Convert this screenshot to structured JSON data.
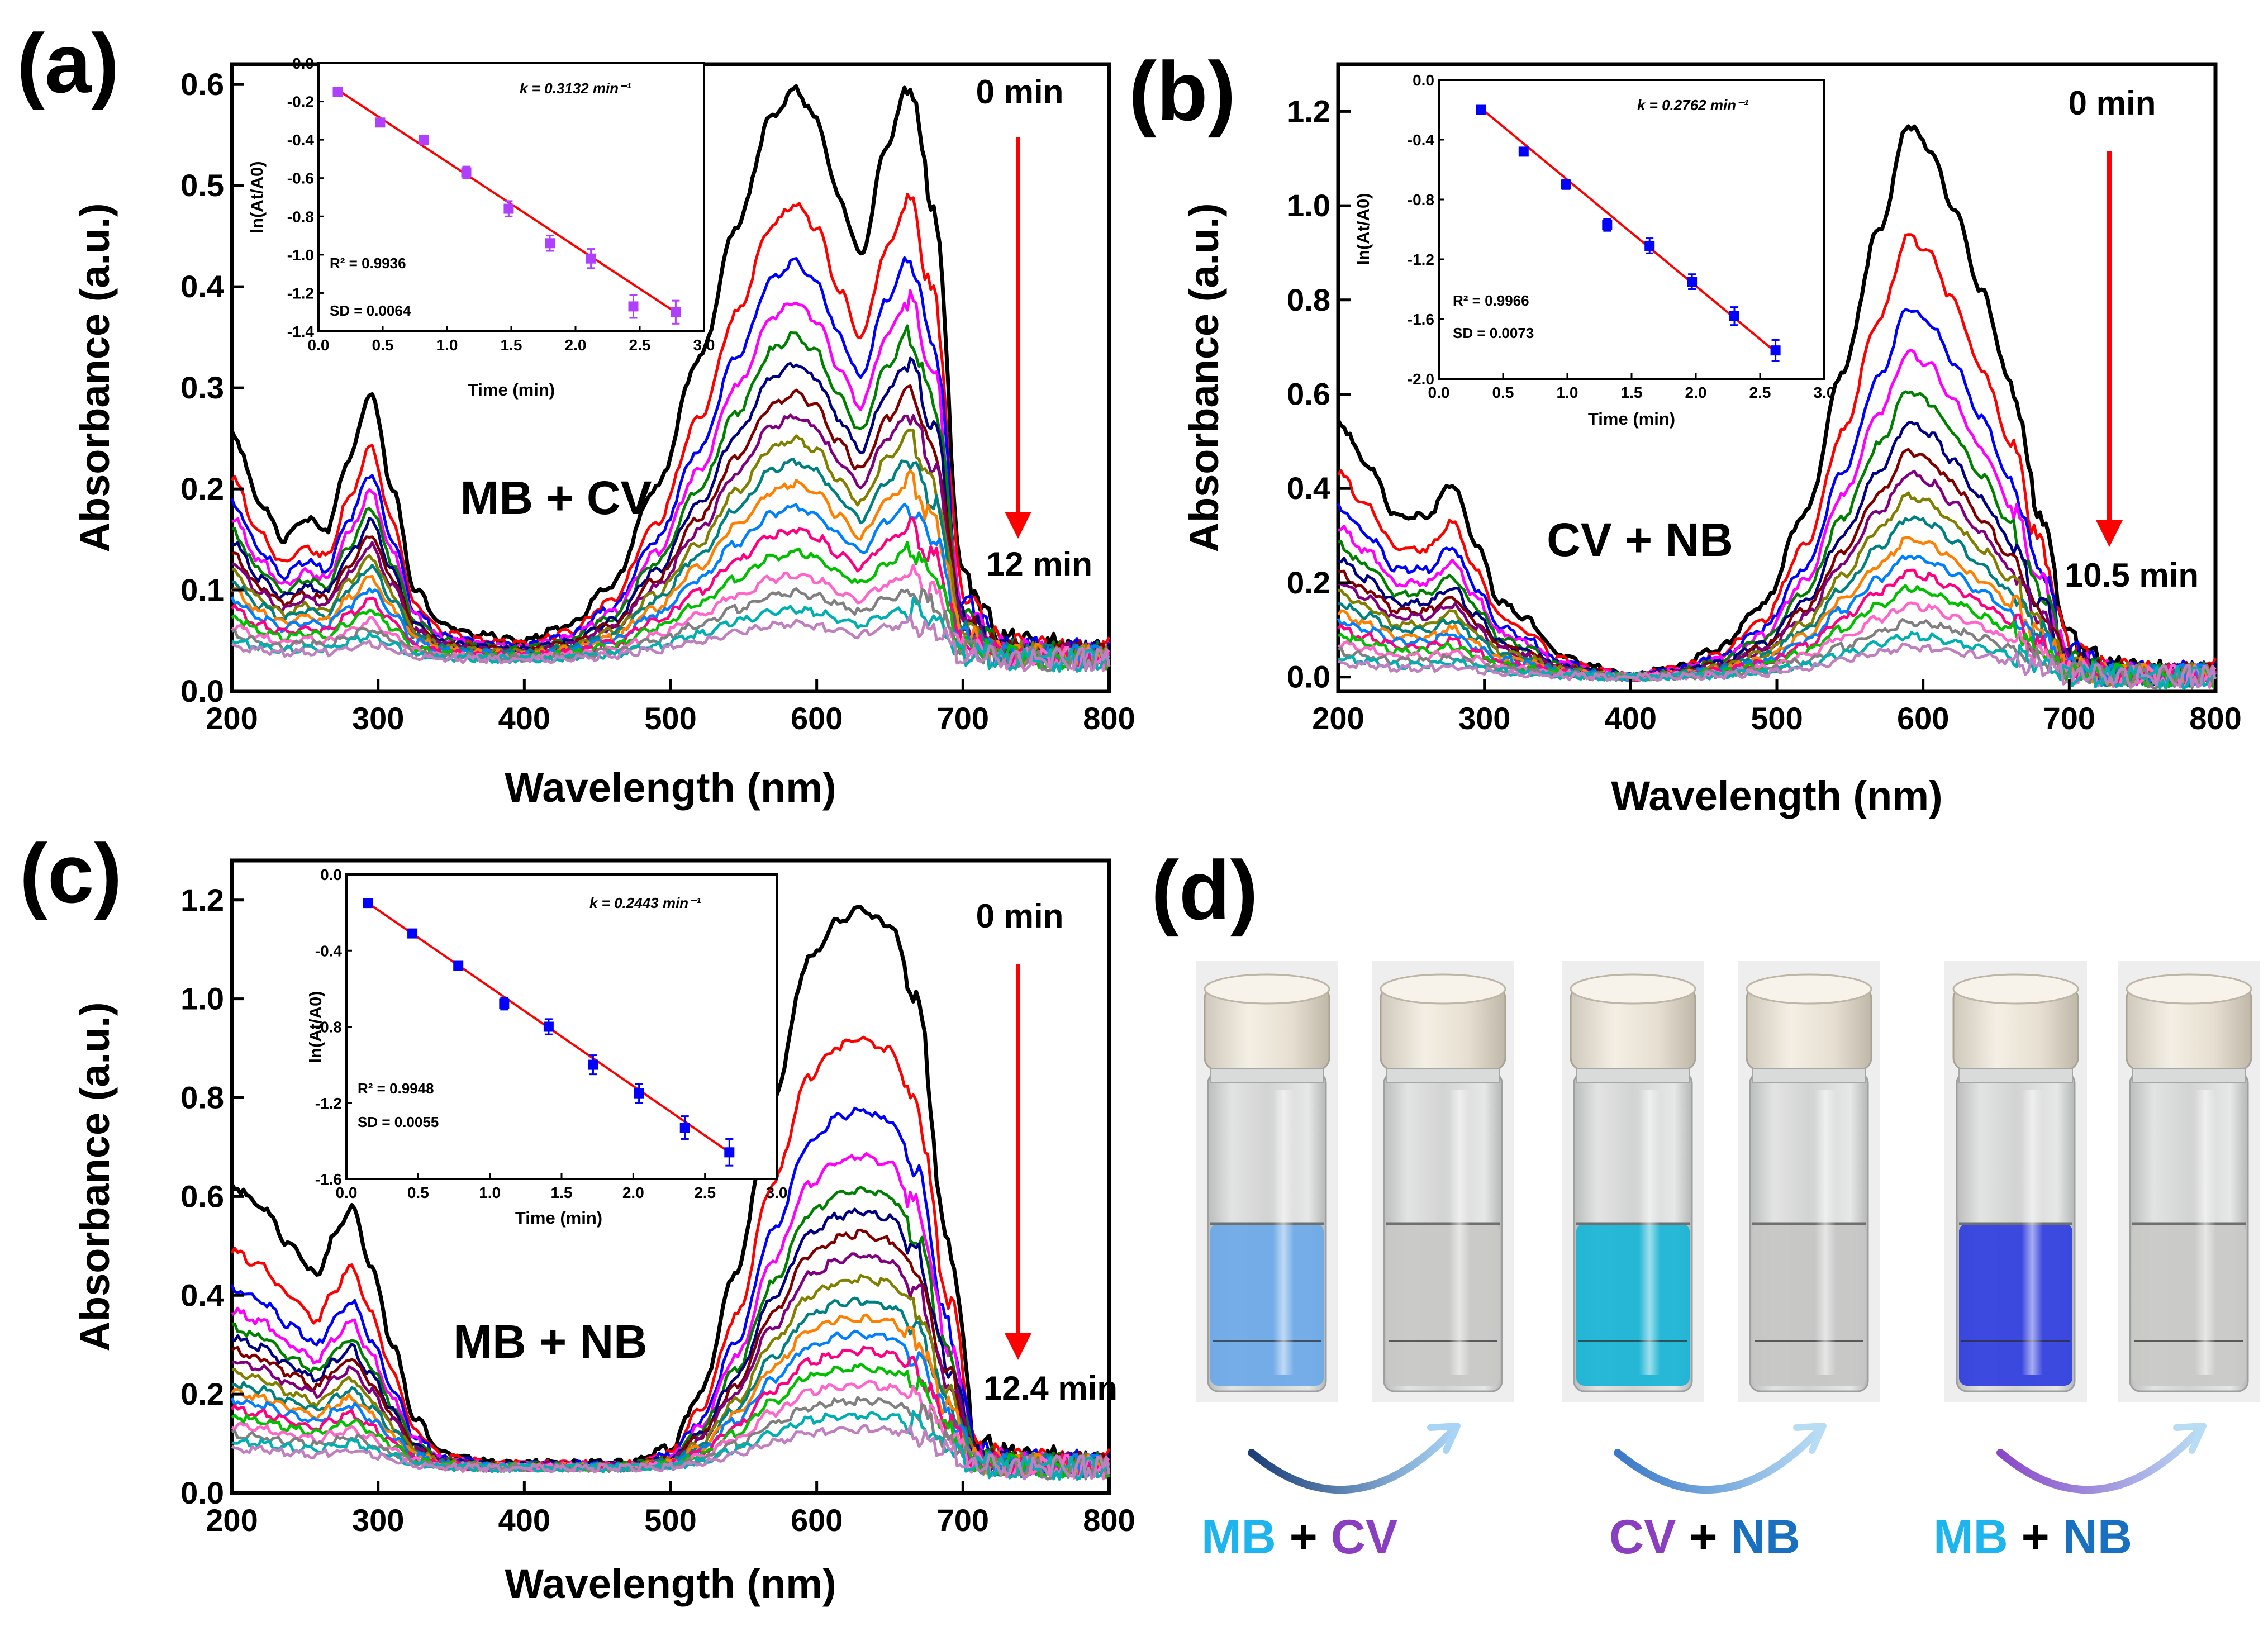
{
  "figure": {
    "spectrum_colors": [
      "#000000",
      "#ff0000",
      "#0000ff",
      "#ff00ff",
      "#008000",
      "#000080",
      "#800000",
      "#800080",
      "#808000",
      "#008080",
      "#ff8000",
      "#0080ff",
      "#ff0080",
      "#00c000",
      "#ff66cc",
      "#808080",
      "#00b0b0",
      "#c080c0",
      "#6080ff",
      "#a0a000",
      "#40a040",
      "#a06060",
      "#60a0a0"
    ],
    "inset_point_color": "#0000ff",
    "inset_line_color": "#ff0000",
    "arrow_color": "#ff0000"
  },
  "chart_data": [
    {
      "panel": "(a)",
      "type": "line",
      "title": "MB + CV",
      "xlabel": "Wavelength (nm)",
      "ylabel": "Absorbance (a.u.)",
      "xlim": [
        200,
        800
      ],
      "ylim": [
        0.0,
        0.62
      ],
      "xticks": [
        200,
        300,
        400,
        500,
        600,
        700,
        800
      ],
      "yticks": [
        0.0,
        0.1,
        0.2,
        0.3,
        0.4,
        0.5,
        0.6
      ],
      "ytick_labels": [
        "0.0",
        "0.1",
        "0.2",
        "0.3",
        "0.4",
        "0.5",
        "0.6"
      ],
      "time_start": "0 min",
      "time_end": "12 min",
      "spectrum_model": {
        "wavelength_grid": [
          200,
          220,
          235,
          250,
          265,
          280,
          295,
          310,
          325,
          345,
          370,
          400,
          430,
          460,
          490,
          520,
          545,
          570,
          585,
          600,
          615,
          630,
          648,
          663,
          680,
          700,
          730,
          760,
          800
        ],
        "initial_absorbance": [
          0.255,
          0.185,
          0.15,
          0.17,
          0.16,
          0.23,
          0.295,
          0.2,
          0.1,
          0.065,
          0.055,
          0.05,
          0.065,
          0.105,
          0.2,
          0.33,
          0.46,
          0.57,
          0.595,
          0.565,
          0.49,
          0.43,
          0.54,
          0.6,
          0.48,
          0.11,
          0.05,
          0.045,
          0.045
        ],
        "scale_factors": [
          1.0,
          0.8,
          0.7,
          0.63,
          0.57,
          0.52,
          0.47,
          0.43,
          0.39,
          0.35,
          0.31,
          0.27,
          0.23,
          0.19,
          0.15,
          0.12,
          0.09,
          0.065
        ],
        "baseline": 0.03
      },
      "inset": {
        "type": "scatter",
        "xlabel": "Time (min)",
        "ylabel": "ln(At/A0)",
        "xlim": [
          0.0,
          3.0
        ],
        "ylim": [
          -1.4,
          0.0
        ],
        "xticks": [
          0.0,
          0.5,
          1.0,
          1.5,
          2.0,
          2.5,
          3.0
        ],
        "xtick_labels": [
          "0.0",
          "0.5",
          "1.0",
          "1.5",
          "2.0",
          "2.5",
          "3.0"
        ],
        "yticks": [
          0.0,
          -0.2,
          -0.4,
          -0.6,
          -0.8,
          -1.0,
          -1.2,
          -1.4
        ],
        "ytick_labels": [
          "0.0",
          "-0.2",
          "-0.4",
          "-0.6",
          "-0.8",
          "-1.0",
          "-1.2",
          "-1.4"
        ],
        "points_x": [
          0.15,
          0.48,
          0.82,
          1.15,
          1.48,
          1.8,
          2.12,
          2.45,
          2.78
        ],
        "points_y": [
          -0.15,
          -0.31,
          -0.4,
          -0.57,
          -0.76,
          -0.94,
          -1.02,
          -1.27,
          -1.3
        ],
        "errors": [
          0.01,
          0.02,
          0.02,
          0.03,
          0.04,
          0.04,
          0.05,
          0.06,
          0.06
        ],
        "point_color": "#b040ff",
        "fit_line": {
          "x": [
            0.15,
            2.8
          ],
          "y": [
            -0.14,
            -1.31
          ]
        },
        "k_label": "k = 0.3132 min⁻¹",
        "r2_label": "R² = 0.9936",
        "sd_label": "SD = 0.0064"
      }
    },
    {
      "panel": "(b)",
      "type": "line",
      "title": "CV + NB",
      "xlabel": "Wavelength (nm)",
      "ylabel": "Absorbance (a.u.)",
      "xlim": [
        200,
        800
      ],
      "ylim": [
        -0.03,
        1.3
      ],
      "xticks": [
        200,
        300,
        400,
        500,
        600,
        700,
        800
      ],
      "yticks": [
        0.0,
        0.2,
        0.4,
        0.6,
        0.8,
        1.0,
        1.2
      ],
      "ytick_labels": [
        "0.0",
        "0.2",
        "0.4",
        "0.6",
        "0.8",
        "1.0",
        "1.2"
      ],
      "time_start": "0 min",
      "time_end": "10.5 min",
      "spectrum_model": {
        "wavelength_grid": [
          200,
          220,
          240,
          260,
          278,
          295,
          310,
          330,
          350,
          375,
          400,
          430,
          460,
          490,
          520,
          545,
          570,
          590,
          605,
          620,
          640,
          660,
          680,
          700,
          730,
          760,
          800
        ],
        "initial_absorbance": [
          0.54,
          0.45,
          0.34,
          0.34,
          0.41,
          0.28,
          0.16,
          0.12,
          0.05,
          0.02,
          0.0,
          0.02,
          0.06,
          0.15,
          0.35,
          0.65,
          0.95,
          1.17,
          1.12,
          1.0,
          0.82,
          0.62,
          0.35,
          0.08,
          0.02,
          0.01,
          0.02
        ],
        "scale_factors": [
          1.0,
          0.8,
          0.67,
          0.59,
          0.52,
          0.46,
          0.41,
          0.37,
          0.33,
          0.29,
          0.25,
          0.22,
          0.19,
          0.16,
          0.13,
          0.1,
          0.075,
          0.055
        ],
        "baseline": 0.0
      },
      "inset": {
        "type": "scatter",
        "xlabel": "Time (min)",
        "ylabel": "ln(At/A0)",
        "xlim": [
          0.0,
          3.0
        ],
        "ylim": [
          -2.0,
          0.0
        ],
        "xticks": [
          0.0,
          0.5,
          1.0,
          1.5,
          2.0,
          2.5,
          3.0
        ],
        "xtick_labels": [
          "0.0",
          "0.5",
          "1.0",
          "1.5",
          "2.0",
          "2.5",
          "3.0"
        ],
        "yticks": [
          0.0,
          -0.4,
          -0.8,
          -1.2,
          -1.6,
          -2.0
        ],
        "ytick_labels": [
          "0.0",
          "-0.4",
          "-0.8",
          "-1.2",
          "-1.6",
          "-2.0"
        ],
        "points_x": [
          0.33,
          0.66,
          0.99,
          1.31,
          1.64,
          1.97,
          2.3,
          2.62
        ],
        "points_y": [
          -0.2,
          -0.48,
          -0.7,
          -0.97,
          -1.11,
          -1.35,
          -1.58,
          -1.81
        ],
        "errors": [
          0.02,
          0.02,
          0.03,
          0.04,
          0.05,
          0.05,
          0.06,
          0.07
        ],
        "point_color": "#0000ff",
        "fit_line": {
          "x": [
            0.3,
            2.62
          ],
          "y": [
            -0.17,
            -1.82
          ]
        },
        "k_label": "k = 0.2762 min⁻¹",
        "r2_label": "R² = 0.9966",
        "sd_label": "SD = 0.0073"
      }
    },
    {
      "panel": "(c)",
      "type": "line",
      "title": "MB + NB",
      "xlabel": "Wavelength (nm)",
      "ylabel": "Absorbance (a.u.)",
      "xlim": [
        200,
        800
      ],
      "ylim": [
        0.0,
        1.28
      ],
      "xticks": [
        200,
        300,
        400,
        500,
        600,
        700,
        800
      ],
      "yticks": [
        0.0,
        0.2,
        0.4,
        0.6,
        0.8,
        1.0,
        1.2
      ],
      "ytick_labels": [
        "0.0",
        "0.2",
        "0.4",
        "0.6",
        "0.8",
        "1.0",
        "1.2"
      ],
      "time_start": "0 min",
      "time_end": "12.4 min",
      "spectrum_model": {
        "wavelength_grid": [
          200,
          220,
          240,
          258,
          270,
          282,
          295,
          310,
          325,
          345,
          380,
          420,
          470,
          500,
          520,
          545,
          570,
          595,
          615,
          630,
          650,
          668,
          690,
          710,
          740,
          770,
          800
        ],
        "initial_absorbance": [
          0.62,
          0.58,
          0.5,
          0.44,
          0.52,
          0.58,
          0.46,
          0.3,
          0.15,
          0.08,
          0.06,
          0.06,
          0.06,
          0.09,
          0.2,
          0.45,
          0.8,
          1.08,
          1.16,
          1.18,
          1.15,
          1.0,
          0.5,
          0.1,
          0.07,
          0.07,
          0.07
        ],
        "scale_factors": [
          1.0,
          0.77,
          0.64,
          0.56,
          0.5,
          0.46,
          0.42,
          0.38,
          0.34,
          0.3,
          0.27,
          0.24,
          0.21,
          0.18,
          0.15,
          0.12,
          0.095,
          0.07
        ],
        "baseline": 0.05
      },
      "inset": {
        "type": "scatter",
        "xlabel": "Time (min)",
        "ylabel": "ln(At/A0)",
        "xlim": [
          0.0,
          3.0
        ],
        "ylim": [
          -1.6,
          0.0
        ],
        "xticks": [
          0.0,
          0.5,
          1.0,
          1.5,
          2.0,
          2.5,
          3.0
        ],
        "xtick_labels": [
          "0.0",
          "0.5",
          "1.0",
          "1.5",
          "2.0",
          "2.5",
          "3.0"
        ],
        "yticks": [
          0.0,
          -0.4,
          -0.8,
          -1.2,
          -1.6
        ],
        "ytick_labels": [
          "0.0",
          "-0.4",
          "-0.8",
          "-1.2",
          "-1.6"
        ],
        "points_x": [
          0.15,
          0.46,
          0.78,
          1.1,
          1.41,
          1.72,
          2.04,
          2.36,
          2.67
        ],
        "points_y": [
          -0.15,
          -0.31,
          -0.48,
          -0.68,
          -0.8,
          -1.0,
          -1.15,
          -1.33,
          -1.46
        ],
        "errors": [
          0.01,
          0.02,
          0.02,
          0.03,
          0.04,
          0.05,
          0.05,
          0.06,
          0.07
        ],
        "point_color": "#0000ff",
        "fit_line": {
          "x": [
            0.15,
            2.67
          ],
          "y": [
            -0.15,
            -1.46
          ]
        },
        "k_label": "k = 0.2443 min⁻¹",
        "r2_label": "R² = 0.9948",
        "sd_label": "SD = 0.0055"
      }
    }
  ],
  "panel_d": {
    "letter": "(d)",
    "pairs": [
      {
        "before_color": "#6aa8e8",
        "after_color": "#c8c8c6",
        "arrow_colors": [
          "#1c3f78",
          "#a9d4f5"
        ],
        "caption": [
          {
            "text": "MB",
            "color": "#1eb4ee"
          },
          {
            "text": " + ",
            "color": "#000000"
          },
          {
            "text": "CV",
            "color": "#8a3fc0"
          }
        ]
      },
      {
        "before_color": "#18b4d6",
        "after_color": "#c6c6c4",
        "arrow_colors": [
          "#3a78c8",
          "#b8dcf4"
        ],
        "caption": [
          {
            "text": "CV",
            "color": "#8a3fc0"
          },
          {
            "text": " + ",
            "color": "#000000"
          },
          {
            "text": "NB",
            "color": "#1a70c0"
          }
        ]
      },
      {
        "before_color": "#2f3de0",
        "after_color": "#c9c9c7",
        "arrow_colors": [
          "#8a48c8",
          "#b8dcf4"
        ],
        "caption": [
          {
            "text": "MB",
            "color": "#1eb4ee"
          },
          {
            "text": " + ",
            "color": "#000000"
          },
          {
            "text": "NB",
            "color": "#1a70c0"
          }
        ]
      }
    ]
  }
}
